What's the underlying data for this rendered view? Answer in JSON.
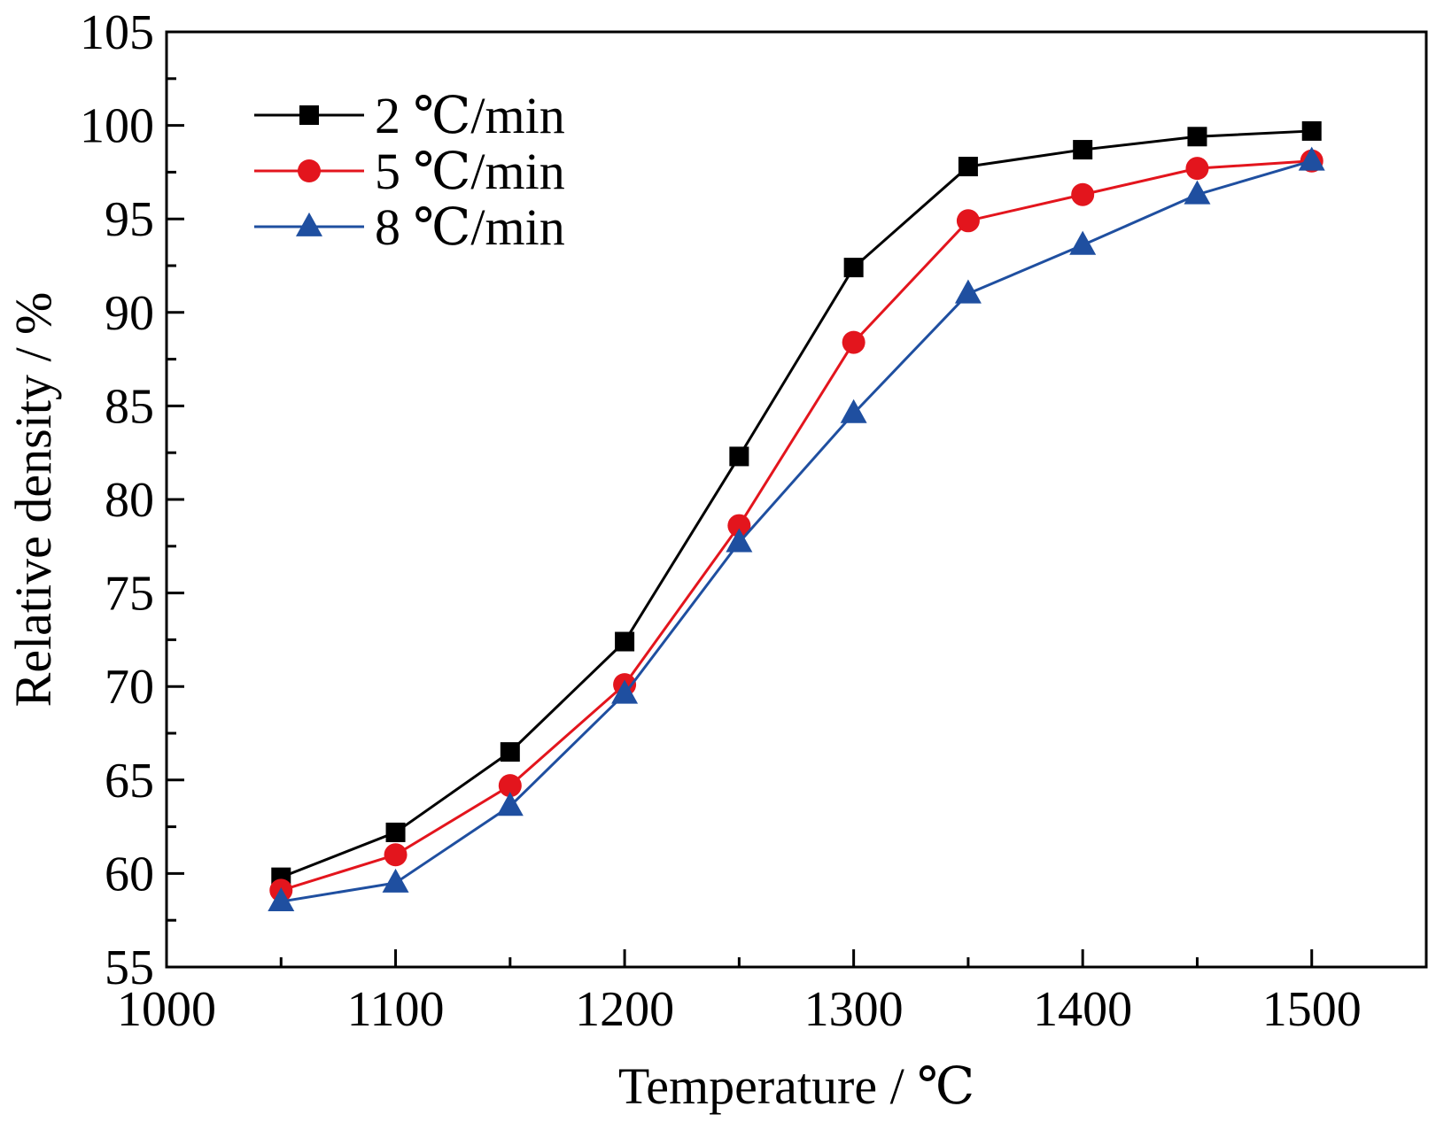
{
  "chart_data": {
    "type": "line",
    "title": "",
    "xlabel": "Temperature / ℃",
    "ylabel": "Relative density / %",
    "xlim": [
      1000,
      1550
    ],
    "ylim": [
      55,
      105
    ],
    "xticks": [
      1000,
      1100,
      1200,
      1300,
      1400,
      1500
    ],
    "yticks": [
      55,
      60,
      65,
      70,
      75,
      80,
      85,
      90,
      95,
      100,
      105
    ],
    "grid": false,
    "legend_position": "top-left",
    "x": [
      1050,
      1100,
      1150,
      1200,
      1250,
      1300,
      1350,
      1400,
      1450,
      1500
    ],
    "series": [
      {
        "name": "2 ℃/min",
        "marker": "square",
        "color": "#000000",
        "values": [
          59.8,
          62.2,
          66.5,
          72.4,
          82.3,
          92.4,
          97.8,
          98.7,
          99.4,
          99.7
        ]
      },
      {
        "name": "5 ℃/min",
        "marker": "circle",
        "color": "#e3151d",
        "values": [
          59.1,
          61.0,
          64.7,
          70.1,
          78.6,
          88.4,
          94.9,
          96.3,
          97.7,
          98.1
        ]
      },
      {
        "name": "8 ℃/min",
        "marker": "triangle",
        "color": "#1f4fa0",
        "values": [
          58.5,
          59.5,
          63.6,
          69.6,
          77.7,
          84.6,
          91.0,
          93.6,
          96.3,
          98.1
        ]
      }
    ]
  }
}
